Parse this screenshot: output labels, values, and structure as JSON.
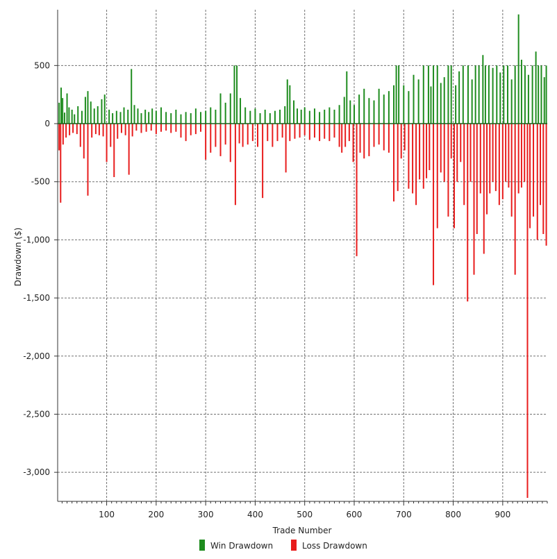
{
  "chart_data": {
    "type": "bar",
    "xlabel": "Trade Number",
    "ylabel": "Drawdown ($)",
    "xlim": [
      1,
      990
    ],
    "ylim": [
      -3250,
      980
    ],
    "x_ticks": [
      100,
      200,
      300,
      400,
      500,
      600,
      700,
      800,
      900
    ],
    "x_tick_labels": [
      "100",
      "200",
      "300",
      "400",
      "500",
      "600",
      "700",
      "800",
      "900"
    ],
    "y_ticks": [
      500,
      0,
      -500,
      -1000,
      -1500,
      -2000,
      -2500,
      -3000
    ],
    "y_tick_labels": [
      "500",
      "0",
      "-500",
      "-1,000",
      "-1,500",
      "-2,000",
      "-2,500",
      "-3,000"
    ],
    "grid": true,
    "legend_position": "bottom-center",
    "colors": {
      "win": "#1e8c1e",
      "loss": "#e81c1c",
      "zero_line": "#1a5e1a",
      "grid": "#707070"
    },
    "series": [
      {
        "name": "Win Drawdown",
        "color": "#1e8c1e",
        "points": [
          [
            4,
            180
          ],
          [
            8,
            310
          ],
          [
            11,
            220
          ],
          [
            15,
            95
          ],
          [
            20,
            260
          ],
          [
            24,
            140
          ],
          [
            30,
            120
          ],
          [
            35,
            80
          ],
          [
            42,
            150
          ],
          [
            50,
            110
          ],
          [
            57,
            230
          ],
          [
            62,
            280
          ],
          [
            68,
            190
          ],
          [
            75,
            130
          ],
          [
            82,
            150
          ],
          [
            90,
            210
          ],
          [
            96,
            250
          ],
          [
            105,
            120
          ],
          [
            112,
            90
          ],
          [
            120,
            110
          ],
          [
            128,
            100
          ],
          [
            135,
            140
          ],
          [
            143,
            120
          ],
          [
            150,
            470
          ],
          [
            156,
            160
          ],
          [
            163,
            130
          ],
          [
            170,
            90
          ],
          [
            178,
            120
          ],
          [
            185,
            100
          ],
          [
            192,
            130
          ],
          [
            200,
            110
          ],
          [
            210,
            140
          ],
          [
            220,
            100
          ],
          [
            230,
            90
          ],
          [
            240,
            120
          ],
          [
            250,
            80
          ],
          [
            260,
            100
          ],
          [
            270,
            90
          ],
          [
            280,
            130
          ],
          [
            290,
            100
          ],
          [
            300,
            110
          ],
          [
            310,
            140
          ],
          [
            320,
            120
          ],
          [
            330,
            260
          ],
          [
            340,
            180
          ],
          [
            350,
            260
          ],
          [
            358,
            500
          ],
          [
            363,
            500
          ],
          [
            370,
            220
          ],
          [
            380,
            140
          ],
          [
            390,
            110
          ],
          [
            400,
            130
          ],
          [
            410,
            90
          ],
          [
            420,
            120
          ],
          [
            430,
            90
          ],
          [
            440,
            110
          ],
          [
            450,
            120
          ],
          [
            460,
            150
          ],
          [
            465,
            380
          ],
          [
            470,
            330
          ],
          [
            478,
            200
          ],
          [
            485,
            130
          ],
          [
            493,
            120
          ],
          [
            500,
            140
          ],
          [
            510,
            110
          ],
          [
            520,
            130
          ],
          [
            530,
            100
          ],
          [
            540,
            120
          ],
          [
            550,
            140
          ],
          [
            560,
            120
          ],
          [
            570,
            160
          ],
          [
            580,
            230
          ],
          [
            585,
            450
          ],
          [
            592,
            200
          ],
          [
            600,
            160
          ],
          [
            610,
            250
          ],
          [
            620,
            300
          ],
          [
            630,
            220
          ],
          [
            640,
            200
          ],
          [
            650,
            300
          ],
          [
            660,
            250
          ],
          [
            670,
            280
          ],
          [
            680,
            330
          ],
          [
            685,
            500
          ],
          [
            690,
            500
          ],
          [
            700,
            330
          ],
          [
            710,
            280
          ],
          [
            720,
            420
          ],
          [
            730,
            380
          ],
          [
            740,
            500
          ],
          [
            750,
            500
          ],
          [
            755,
            320
          ],
          [
            760,
            500
          ],
          [
            768,
            500
          ],
          [
            775,
            350
          ],
          [
            782,
            400
          ],
          [
            790,
            500
          ],
          [
            796,
            500
          ],
          [
            805,
            330
          ],
          [
            812,
            450
          ],
          [
            820,
            500
          ],
          [
            830,
            500
          ],
          [
            838,
            380
          ],
          [
            845,
            500
          ],
          [
            852,
            500
          ],
          [
            860,
            590
          ],
          [
            865,
            500
          ],
          [
            872,
            500
          ],
          [
            880,
            480
          ],
          [
            888,
            500
          ],
          [
            895,
            440
          ],
          [
            902,
            500
          ],
          [
            910,
            500
          ],
          [
            918,
            380
          ],
          [
            925,
            500
          ],
          [
            932,
            940
          ],
          [
            938,
            550
          ],
          [
            945,
            500
          ],
          [
            952,
            420
          ],
          [
            960,
            500
          ],
          [
            967,
            620
          ],
          [
            972,
            500
          ],
          [
            978,
            500
          ],
          [
            984,
            400
          ],
          [
            988,
            500
          ]
        ]
      },
      {
        "name": "Loss Drawdown",
        "color": "#e81c1c",
        "points": [
          [
            4,
            -230
          ],
          [
            7,
            -680
          ],
          [
            12,
            -180
          ],
          [
            18,
            -120
          ],
          [
            25,
            -100
          ],
          [
            32,
            -80
          ],
          [
            40,
            -90
          ],
          [
            47,
            -200
          ],
          [
            54,
            -300
          ],
          [
            62,
            -620
          ],
          [
            70,
            -120
          ],
          [
            78,
            -90
          ],
          [
            85,
            -100
          ],
          [
            93,
            -110
          ],
          [
            100,
            -330
          ],
          [
            108,
            -200
          ],
          [
            115,
            -460
          ],
          [
            122,
            -130
          ],
          [
            130,
            -80
          ],
          [
            138,
            -100
          ],
          [
            145,
            -440
          ],
          [
            152,
            -110
          ],
          [
            160,
            -60
          ],
          [
            170,
            -80
          ],
          [
            180,
            -70
          ],
          [
            190,
            -60
          ],
          [
            200,
            -90
          ],
          [
            210,
            -70
          ],
          [
            220,
            -60
          ],
          [
            230,
            -80
          ],
          [
            240,
            -70
          ],
          [
            250,
            -120
          ],
          [
            260,
            -150
          ],
          [
            270,
            -100
          ],
          [
            280,
            -90
          ],
          [
            290,
            -70
          ],
          [
            300,
            -310
          ],
          [
            310,
            -250
          ],
          [
            320,
            -200
          ],
          [
            330,
            -280
          ],
          [
            340,
            -180
          ],
          [
            350,
            -330
          ],
          [
            360,
            -700
          ],
          [
            368,
            -170
          ],
          [
            375,
            -200
          ],
          [
            385,
            -180
          ],
          [
            395,
            -150
          ],
          [
            405,
            -200
          ],
          [
            415,
            -640
          ],
          [
            425,
            -150
          ],
          [
            435,
            -200
          ],
          [
            445,
            -150
          ],
          [
            455,
            -120
          ],
          [
            462,
            -420
          ],
          [
            470,
            -150
          ],
          [
            480,
            -130
          ],
          [
            490,
            -120
          ],
          [
            500,
            -100
          ],
          [
            510,
            -140
          ],
          [
            520,
            -120
          ],
          [
            530,
            -150
          ],
          [
            540,
            -130
          ],
          [
            550,
            -150
          ],
          [
            560,
            -120
          ],
          [
            570,
            -200
          ],
          [
            575,
            -250
          ],
          [
            582,
            -200
          ],
          [
            590,
            -150
          ],
          [
            598,
            -330
          ],
          [
            605,
            -1140
          ],
          [
            612,
            -250
          ],
          [
            620,
            -300
          ],
          [
            630,
            -280
          ],
          [
            640,
            -200
          ],
          [
            650,
            -180
          ],
          [
            660,
            -230
          ],
          [
            670,
            -250
          ],
          [
            680,
            -670
          ],
          [
            688,
            -580
          ],
          [
            695,
            -300
          ],
          [
            702,
            -230
          ],
          [
            710,
            -560
          ],
          [
            718,
            -600
          ],
          [
            725,
            -700
          ],
          [
            732,
            -480
          ],
          [
            740,
            -560
          ],
          [
            746,
            -470
          ],
          [
            752,
            -400
          ],
          [
            760,
            -1390
          ],
          [
            768,
            -900
          ],
          [
            775,
            -420
          ],
          [
            782,
            -500
          ],
          [
            790,
            -800
          ],
          [
            796,
            -300
          ],
          [
            802,
            -900
          ],
          [
            808,
            -500
          ],
          [
            815,
            -330
          ],
          [
            822,
            -700
          ],
          [
            829,
            -1530
          ],
          [
            835,
            -500
          ],
          [
            842,
            -1300
          ],
          [
            848,
            -950
          ],
          [
            855,
            -600
          ],
          [
            862,
            -1120
          ],
          [
            868,
            -780
          ],
          [
            874,
            -600
          ],
          [
            880,
            -500
          ],
          [
            886,
            -580
          ],
          [
            893,
            -700
          ],
          [
            900,
            -650
          ],
          [
            906,
            -500
          ],
          [
            912,
            -550
          ],
          [
            918,
            -800
          ],
          [
            925,
            -1300
          ],
          [
            932,
            -600
          ],
          [
            938,
            -550
          ],
          [
            944,
            -500
          ],
          [
            950,
            -3220
          ],
          [
            955,
            -900
          ],
          [
            962,
            -800
          ],
          [
            970,
            -1000
          ],
          [
            976,
            -700
          ],
          [
            982,
            -950
          ],
          [
            988,
            -1050
          ]
        ]
      }
    ]
  }
}
